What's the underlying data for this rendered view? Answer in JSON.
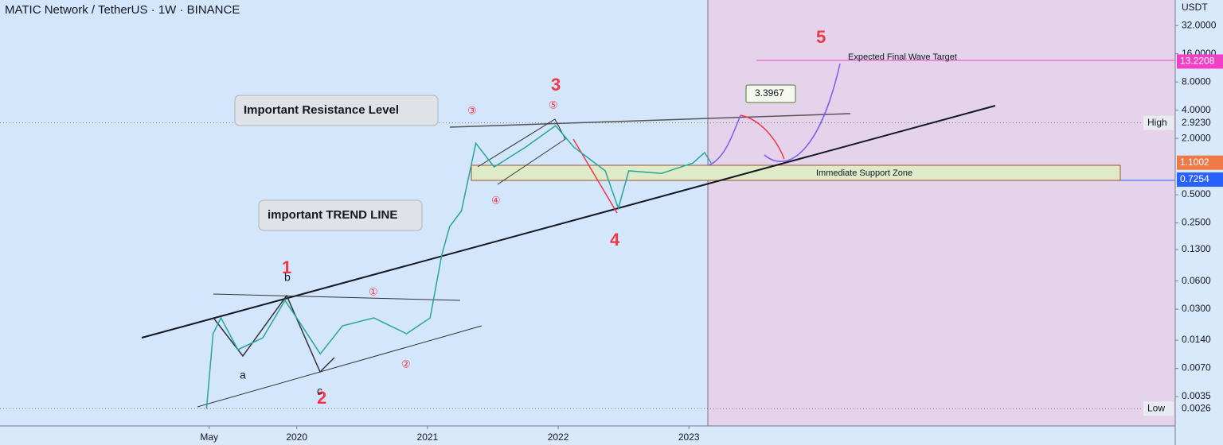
{
  "chart_data": {
    "type": "line",
    "title": "MATIC Network / TetherUS · 1W · BINANCE",
    "y_unit": "USDT",
    "log_scale": true,
    "x": [
      2019.31,
      2019.36,
      2019.42,
      2019.55,
      2019.74,
      2019.91,
      2020.04,
      2020.18,
      2020.35,
      2020.59,
      2020.84,
      2021.02,
      2021.11,
      2021.17,
      2021.26,
      2021.37,
      2021.51,
      2021.75,
      2021.98,
      2022.12,
      2022.36,
      2022.46,
      2022.54,
      2022.79,
      2023.03,
      2023.12,
      2023.17
    ],
    "values": [
      0.0026,
      0.0164,
      0.0242,
      0.0111,
      0.0148,
      0.0372,
      0.0199,
      0.01,
      0.0199,
      0.0242,
      0.0164,
      0.0242,
      0.115,
      0.229,
      0.337,
      1.77,
      0.99,
      1.61,
      2.73,
      1.61,
      0.9,
      0.358,
      0.9,
      0.845,
      1.09,
      1.41,
      1.09
    ],
    "color": "#26a69a",
    "xlim": [
      2017.73,
      2026.72
    ],
    "ylim": [
      0.0017,
      60
    ],
    "xticks": [
      {
        "value": 2019.33,
        "label": "May"
      },
      2020,
      2021,
      2022,
      2023
    ],
    "yticks": [
      {
        "value": 32,
        "label": "32.0000"
      },
      {
        "value": 16,
        "label": "16.0000"
      },
      {
        "value": 8,
        "label": "8.0000"
      },
      {
        "value": 4,
        "label": "4.0000"
      },
      {
        "value": 2,
        "label": "2.0000"
      },
      {
        "value": 0.5,
        "label": "0.5000"
      },
      {
        "value": 0.25,
        "label": "0.2500"
      },
      {
        "value": 0.13,
        "label": "0.1300"
      },
      {
        "value": 0.06,
        "label": "0.0600"
      },
      {
        "value": 0.03,
        "label": "0.0300"
      },
      {
        "value": 0.014,
        "label": "0.0140"
      },
      {
        "value": 0.007,
        "label": "0.0070"
      },
      {
        "value": 0.0035,
        "label": "0.0035"
      }
    ],
    "markers": [
      {
        "value": 13.2208,
        "label": "13.2208",
        "color": "#f23fc5"
      },
      {
        "value": 2.923,
        "label": "2.9230",
        "name": "High"
      },
      {
        "value": 1.1002,
        "label": "1.1002",
        "color": "#f07a47"
      },
      {
        "value": 0.7254,
        "label": "0.7254",
        "color": "#2962ff"
      },
      {
        "value": 0.0026,
        "label": "0.0026",
        "name": "Low"
      }
    ],
    "annotations": [
      "1",
      "2",
      "3",
      "4",
      "5",
      "a",
      "b",
      "c",
      "①",
      "②",
      "③",
      "④",
      "⑤",
      "Important Resistance Level",
      "important TREND LINE",
      "3.3967",
      "Expected Final Wave Target",
      "Immediate Support Zone"
    ]
  }
}
